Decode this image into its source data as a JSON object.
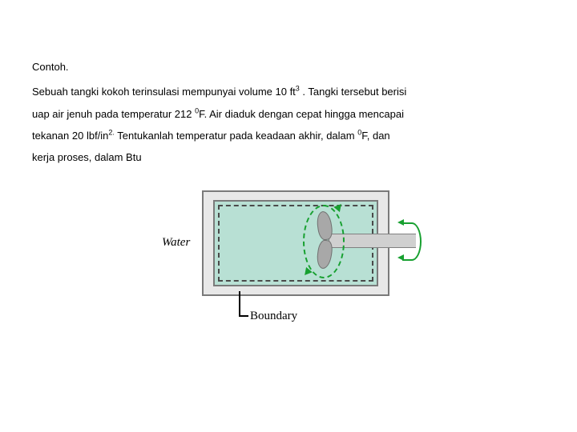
{
  "doc": {
    "title": "Contoh.",
    "line1a": "Sebuah tangki kokoh terinsulasi mempunyai volume 10 ft",
    "sup1": "3",
    "line1b": " . Tangki tersebut berisi",
    "line2a": "uap air jenuh pada temperatur 212 ",
    "sup2": "0",
    "line2b": "F. Air diaduk dengan cepat hingga mencapai",
    "line3a": "tekanan 20 lbf/in",
    "sup3": "2.",
    "line3b": " Tentukanlah temperatur pada keadaan akhir, dalam ",
    "sup4": "0",
    "line3c": "F, dan",
    "line4": "kerja proses, dalam Btu"
  },
  "figure": {
    "water_label": "Water",
    "boundary_label": "Boundary",
    "colors": {
      "tank_fill": "#e8e8e8",
      "water_fill": "#b8e0d4",
      "border": "#7a7a7a",
      "dashed": "#4a4a4a",
      "arrow": "#17a030",
      "blade": "#a8a8a8"
    }
  }
}
